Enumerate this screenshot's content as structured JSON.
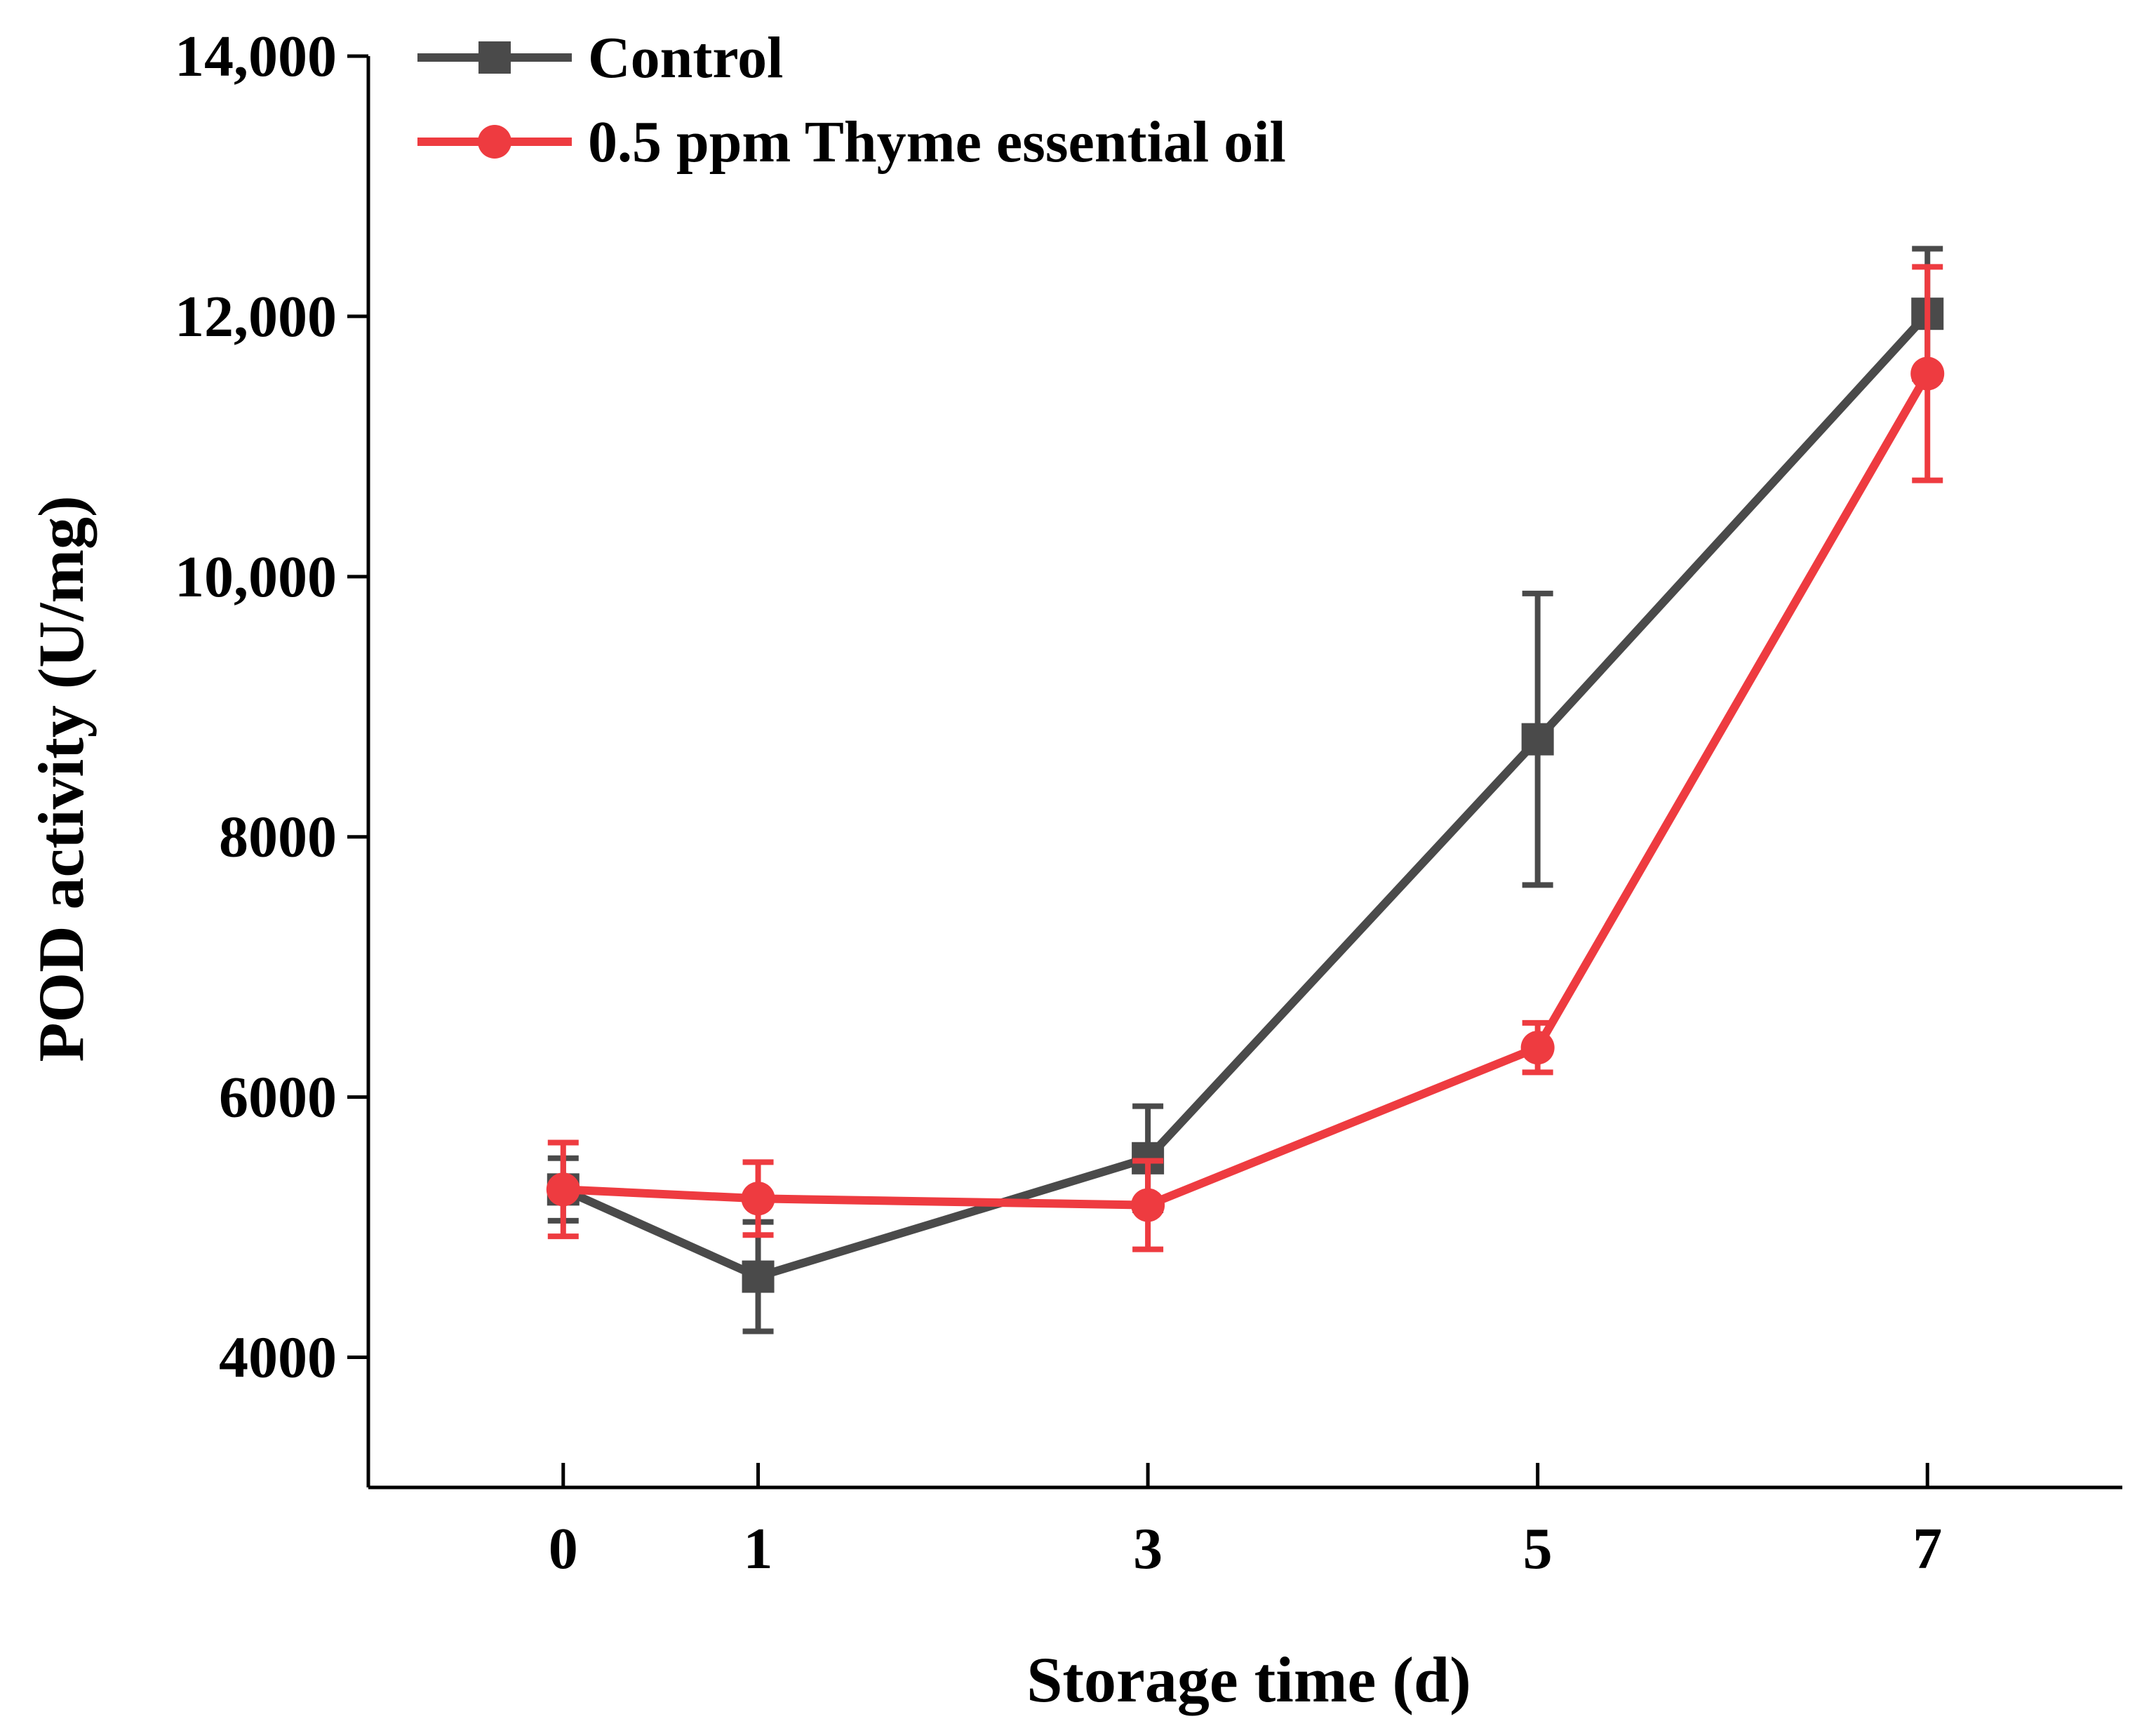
{
  "chart_data": {
    "type": "line",
    "title": "",
    "xlabel": "Storage time (d)",
    "ylabel": "POD activity (U/mg)",
    "x": [
      0,
      1,
      3,
      5,
      7
    ],
    "x_tick_labels": [
      "0",
      "1",
      "3",
      "5",
      "7"
    ],
    "xlim": [
      -1,
      8
    ],
    "ylim": [
      3000,
      14000
    ],
    "y_ticks": [
      4000,
      6000,
      8000,
      10000,
      12000,
      14000
    ],
    "y_tick_labels": [
      "4000",
      "6000",
      "8000",
      "10,000",
      "12,000",
      "14,000"
    ],
    "grid": false,
    "legend_position": "top-left",
    "series": [
      {
        "name": "Control",
        "color": "#4a4a4a",
        "marker": "square",
        "values": [
          5290,
          4620,
          5530,
          8750,
          12020
        ],
        "errors": [
          240,
          420,
          400,
          1120,
          500
        ]
      },
      {
        "name": "0.5 ppm Thyme essential oil",
        "color": "#ee3b40",
        "marker": "circle",
        "values": [
          5290,
          5220,
          5170,
          6380,
          11560
        ],
        "errors": [
          360,
          280,
          340,
          190,
          820
        ]
      }
    ]
  }
}
